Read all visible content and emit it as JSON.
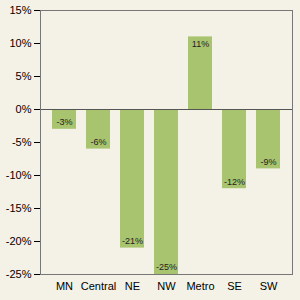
{
  "chart_data": {
    "type": "bar",
    "categories": [
      "MN",
      "Central",
      "NE",
      "NW",
      "Metro",
      "SE",
      "SW"
    ],
    "values": [
      -3,
      -6,
      -21,
      -25,
      11,
      -12,
      -9
    ],
    "value_labels": [
      "-3%",
      "-6%",
      "-21%",
      "-25%",
      "11%",
      "-12%",
      "-9%"
    ],
    "data_labels": true,
    "color": "#a9c46f",
    "grid": false,
    "ylim": [
      -25,
      15
    ],
    "yticks": [
      {
        "value": -25,
        "label": "-25%"
      },
      {
        "value": -20,
        "label": "-20%"
      },
      {
        "value": -15,
        "label": "-15%"
      },
      {
        "value": -10,
        "label": "-10%"
      },
      {
        "value": -5,
        "label": "-5%"
      },
      {
        "value": 0,
        "label": "0%"
      },
      {
        "value": 5,
        "label": "5%"
      },
      {
        "value": 10,
        "label": "10%"
      },
      {
        "value": 15,
        "label": "15%"
      }
    ]
  }
}
